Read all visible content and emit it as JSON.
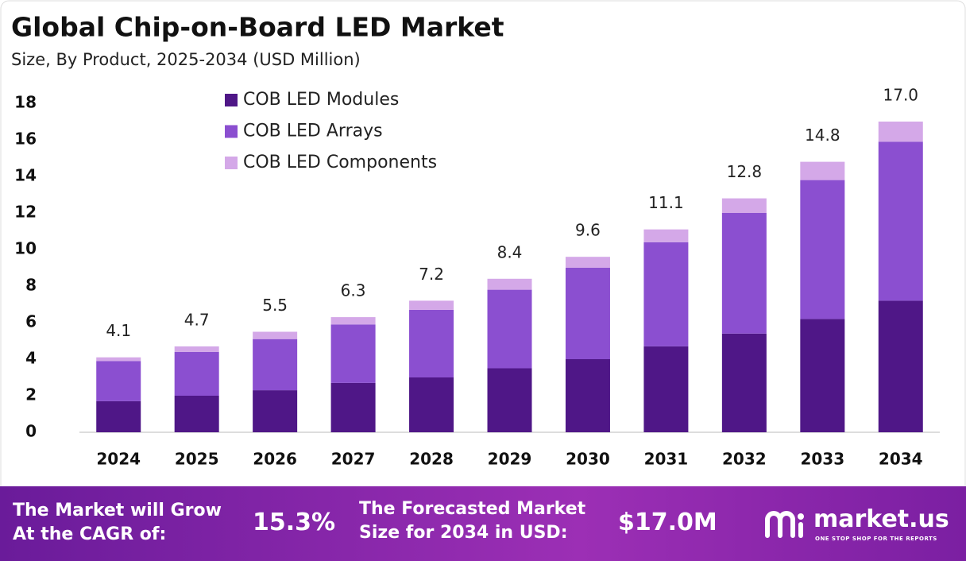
{
  "chart_data": {
    "type": "stacked_bar",
    "title": "Global Chip-on-Board LED Market",
    "subtitle": "Size, By Product, 2025-2034 (USD Million)",
    "categories": [
      "2024",
      "2025",
      "2026",
      "2027",
      "2028",
      "2029",
      "2030",
      "2031",
      "2032",
      "2033",
      "2034"
    ],
    "series": [
      {
        "name": "COB LED Modules",
        "color": "#4f1787",
        "values": [
          1.7,
          2.0,
          2.3,
          2.7,
          3.0,
          3.5,
          4.0,
          4.7,
          5.4,
          6.2,
          7.2
        ]
      },
      {
        "name": "COB LED Arrays",
        "color": "#8b4fd0",
        "values": [
          2.2,
          2.4,
          2.8,
          3.2,
          3.7,
          4.3,
          5.0,
          5.7,
          6.6,
          7.6,
          8.7
        ]
      },
      {
        "name": "COB LED Components",
        "color": "#d4a8e8",
        "values": [
          0.2,
          0.3,
          0.4,
          0.4,
          0.5,
          0.6,
          0.6,
          0.7,
          0.8,
          1.0,
          1.1
        ]
      }
    ],
    "total_labels": [
      "4.1",
      "4.7",
      "5.5",
      "6.3",
      "7.2",
      "8.4",
      "9.6",
      "11.1",
      "12.8",
      "14.8",
      "17.0"
    ],
    "ylim": [
      0,
      18
    ],
    "yticks": [
      0,
      2,
      4,
      6,
      8,
      10,
      12,
      14,
      16,
      18
    ],
    "grid": false
  },
  "footer": {
    "cagr_label": "The Market will Grow At the CAGR of:",
    "cagr_value": "15.3%",
    "forecast_label": "The Forecasted Market Size for 2034 in USD:",
    "forecast_value": "$17.0M",
    "brand": "market.us",
    "tagline": "ONE STOP SHOP FOR THE REPORTS"
  }
}
